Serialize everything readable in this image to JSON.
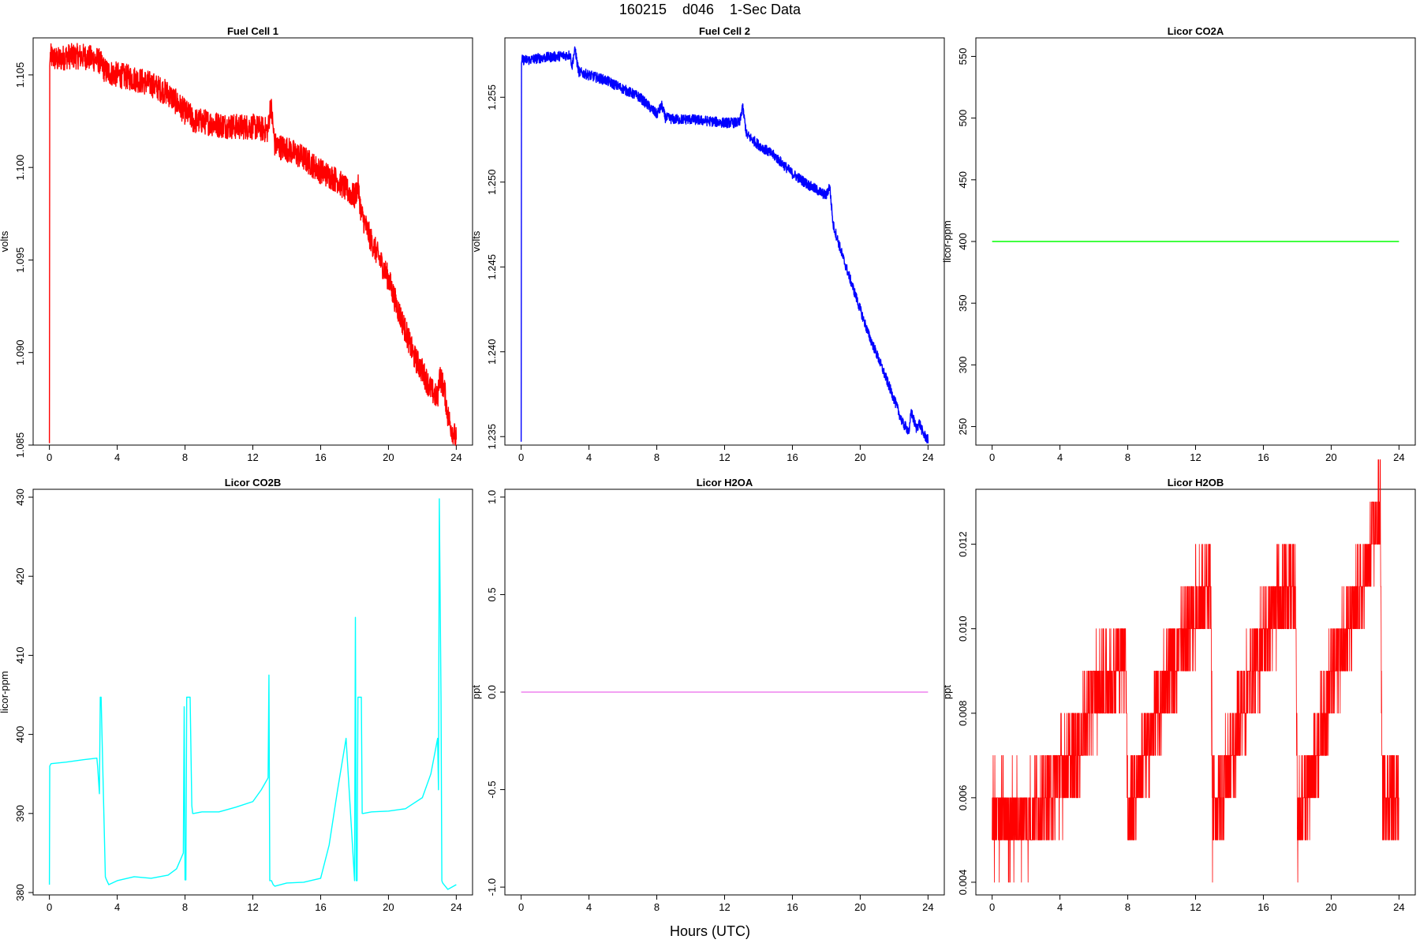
{
  "page": {
    "title": "160215    d046    1-Sec Data",
    "x_label": "Hours (UTC)"
  },
  "chart_data": [
    {
      "type": "line",
      "title": "Fuel Cell 1",
      "ylabel": "volts",
      "xlabel": "",
      "xlim": [
        0,
        24
      ],
      "ylim": [
        1.085,
        1.107
      ],
      "x_ticks": [
        0,
        4,
        8,
        12,
        16,
        20,
        24
      ],
      "y_ticks": [
        1.085,
        1.09,
        1.095,
        1.1,
        1.105
      ],
      "y_tick_labels": [
        "1.085",
        "1.090",
        "1.095",
        "1.100",
        "1.105"
      ],
      "color": "#ff0000",
      "noise": 0.0007,
      "x": [
        0,
        0.02,
        0.05,
        0.5,
        1,
        2,
        2.9,
        3.1,
        3.3,
        4,
        5,
        6,
        7,
        7.5,
        8,
        8.3,
        8.5,
        9,
        10,
        11,
        12,
        12.9,
        13.05,
        13.3,
        14,
        15,
        16,
        17,
        17.5,
        18,
        18.2,
        18.4,
        19,
        20,
        20.5,
        21,
        21.5,
        22,
        22.5,
        22.9,
        23,
        23.3,
        23.5,
        23.7,
        24
      ],
      "y": [
        1.0851,
        1.1055,
        1.106,
        1.1058,
        1.106,
        1.106,
        1.1058,
        1.1055,
        1.1052,
        1.105,
        1.1048,
        1.1045,
        1.104,
        1.1035,
        1.103,
        1.1028,
        1.1025,
        1.1025,
        1.1023,
        1.1022,
        1.1022,
        1.102,
        1.1035,
        1.1012,
        1.101,
        1.1005,
        1.0998,
        1.0993,
        1.0988,
        1.0984,
        1.099,
        1.0975,
        1.096,
        1.094,
        1.0925,
        1.0912,
        1.0898,
        1.089,
        1.088,
        1.0875,
        1.0888,
        1.088,
        1.0866,
        1.086,
        1.0853
      ]
    },
    {
      "type": "line",
      "title": "Fuel Cell 2",
      "ylabel": "volts",
      "xlabel": "",
      "xlim": [
        0,
        24
      ],
      "ylim": [
        1.2345,
        1.2585
      ],
      "x_ticks": [
        0,
        4,
        8,
        12,
        16,
        20,
        24
      ],
      "y_ticks": [
        1.235,
        1.24,
        1.245,
        1.25,
        1.255
      ],
      "y_tick_labels": [
        "1.235",
        "1.240",
        "1.245",
        "1.250",
        "1.255"
      ],
      "color": "#0000ff",
      "noise": 0.0003,
      "x": [
        0,
        0.02,
        0.05,
        0.5,
        1,
        2,
        2.9,
        3.0,
        3.1,
        3.2,
        3.3,
        3.4,
        4,
        5,
        6,
        7,
        7.5,
        8,
        8.3,
        8.5,
        9,
        10,
        11,
        12,
        12.9,
        13.05,
        13.3,
        14,
        15,
        16,
        17,
        17.5,
        18,
        18.2,
        18.4,
        19,
        20,
        20.5,
        21,
        21.5,
        22,
        22.5,
        22.9,
        23,
        23.3,
        23.5,
        23.7,
        24
      ],
      "y": [
        1.2347,
        1.257,
        1.2572,
        1.2572,
        1.2573,
        1.2574,
        1.2575,
        1.2568,
        1.2575,
        1.2578,
        1.257,
        1.2565,
        1.2563,
        1.256,
        1.2555,
        1.255,
        1.2545,
        1.254,
        1.2545,
        1.2538,
        1.2537,
        1.2537,
        1.2536,
        1.2535,
        1.2535,
        1.2545,
        1.2528,
        1.2522,
        1.2515,
        1.2505,
        1.2498,
        1.2495,
        1.2492,
        1.2498,
        1.2475,
        1.2455,
        1.2425,
        1.241,
        1.2398,
        1.2385,
        1.2372,
        1.2358,
        1.2353,
        1.2365,
        1.2355,
        1.2358,
        1.2352,
        1.2348
      ]
    },
    {
      "type": "line",
      "title": "Licor CO2A",
      "ylabel": "licor-ppm",
      "xlabel": "",
      "xlim": [
        0,
        24
      ],
      "ylim": [
        235,
        565
      ],
      "x_ticks": [
        0,
        4,
        8,
        12,
        16,
        20,
        24
      ],
      "y_ticks": [
        250,
        300,
        350,
        400,
        450,
        500,
        550
      ],
      "y_tick_labels": [
        "250",
        "300",
        "350",
        "400",
        "450",
        "500",
        "550"
      ],
      "color": "#00ff00",
      "noise": 0,
      "x": [
        0,
        24
      ],
      "y": [
        400,
        400
      ]
    },
    {
      "type": "line",
      "title": "Licor CO2B",
      "ylabel": "licor-ppm",
      "xlabel": "",
      "xlim": [
        0,
        24
      ],
      "ylim": [
        379.7,
        431
      ],
      "x_ticks": [
        0,
        4,
        8,
        12,
        16,
        20,
        24
      ],
      "y_ticks": [
        380,
        390,
        400,
        410,
        420,
        430
      ],
      "y_tick_labels": [
        "380",
        "390",
        "400",
        "410",
        "420",
        "430"
      ],
      "color": "#00ffff",
      "noise": 0,
      "x": [
        0,
        0.02,
        0.1,
        1,
        2,
        2.8,
        2.85,
        2.95,
        3.0,
        3.05,
        3.3,
        3.35,
        3.5,
        4,
        5,
        6,
        7,
        7.5,
        7.9,
        7.95,
        8.0,
        8.05,
        8.1,
        8.3,
        8.4,
        8.45,
        8.5,
        9,
        10,
        11,
        12,
        12.5,
        12.9,
        12.95,
        13.0,
        13.1,
        13.2,
        13.3,
        14,
        15,
        16,
        16.5,
        17,
        17.5,
        18.0,
        18.05,
        18.1,
        18.15,
        18.2,
        18.4,
        18.45,
        18.5,
        19,
        20,
        21,
        22,
        22.5,
        22.9,
        22.95,
        23.0,
        23.1,
        23.15,
        23.2,
        23.5,
        24
      ],
      "y": [
        381,
        396,
        396.3,
        396.5,
        396.8,
        397,
        395.8,
        392.5,
        404.7,
        404.7,
        382,
        381.7,
        381,
        381.5,
        382,
        381.8,
        382.2,
        383,
        385,
        403.5,
        381.6,
        381.6,
        404.7,
        404.7,
        391,
        390,
        390,
        390.2,
        390.2,
        390.8,
        391.5,
        393,
        394.5,
        407.5,
        381.5,
        381.5,
        381,
        380.8,
        381.2,
        381.3,
        381.8,
        386,
        393,
        399.5,
        381.5,
        414.8,
        381.5,
        381.5,
        404.7,
        404.7,
        390,
        390,
        390.2,
        390.3,
        390.6,
        392,
        395,
        399.5,
        393,
        429.8,
        404.5,
        381.5,
        381.2,
        380.4,
        381
      ]
    },
    {
      "type": "line",
      "title": "Licor H2OA",
      "ylabel": "ppt",
      "xlabel": "",
      "xlim": [
        0,
        24
      ],
      "ylim": [
        -1.04,
        1.04
      ],
      "x_ticks": [
        0,
        4,
        8,
        12,
        16,
        20,
        24
      ],
      "y_ticks": [
        -1.0,
        -0.5,
        0.0,
        0.5,
        1.0
      ],
      "y_tick_labels": [
        "-1.0",
        "-0.5",
        "0.0",
        "0.5",
        "1.0"
      ],
      "color": "#ee82ee",
      "noise": 0,
      "x": [
        0,
        24
      ],
      "y": [
        0,
        0
      ]
    },
    {
      "type": "line",
      "title": "Licor H2OB",
      "ylabel": "ppt",
      "xlabel": "",
      "xlim": [
        0,
        24
      ],
      "ylim": [
        0.0037,
        0.0133
      ],
      "x_ticks": [
        0,
        4,
        8,
        12,
        16,
        20,
        24
      ],
      "y_ticks": [
        0.004,
        0.006,
        0.008,
        0.01,
        0.012
      ],
      "y_tick_labels": [
        "0.004",
        "0.006",
        "0.008",
        "0.010",
        "0.012"
      ],
      "color": "#ff0000",
      "noise": 0,
      "quantized": true,
      "x": [
        0,
        1,
        2,
        3,
        4,
        5,
        6,
        7,
        7.9,
        8.0,
        9,
        10,
        11,
        12,
        12.9,
        13.0,
        14,
        15,
        16,
        17,
        17.9,
        18.0,
        19,
        20,
        21,
        22,
        22.9,
        23.0,
        23.5,
        24
      ],
      "y": [
        0.0055,
        0.0055,
        0.0055,
        0.0058,
        0.0065,
        0.007,
        0.0085,
        0.0088,
        0.0095,
        0.0055,
        0.007,
        0.0085,
        0.0095,
        0.0105,
        0.0108,
        0.0055,
        0.0068,
        0.0085,
        0.0098,
        0.0108,
        0.011,
        0.0055,
        0.0068,
        0.0088,
        0.01,
        0.0112,
        0.013,
        0.0062,
        0.006,
        0.0065
      ]
    }
  ]
}
